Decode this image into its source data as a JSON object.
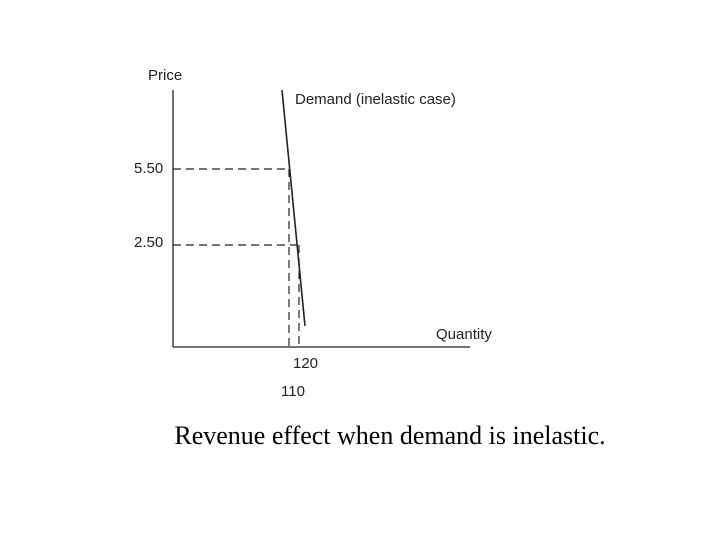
{
  "diagram": {
    "y_axis_label": "Price",
    "x_axis_label": "Quantity",
    "curve_label": "Demand (inelastic case)",
    "price_labels": [
      "5.50",
      "2.50"
    ],
    "quantity_labels": [
      "120",
      "110"
    ]
  },
  "caption": "Revenue effect when demand is inelastic."
}
